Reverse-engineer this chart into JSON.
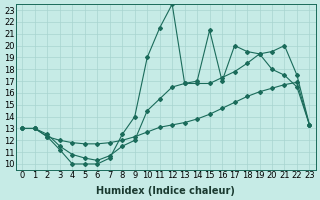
{
  "xlabel": "Humidex (Indice chaleur)",
  "ylabel": "",
  "xlim": [
    -0.5,
    23.5
  ],
  "ylim": [
    9.5,
    23.5
  ],
  "xticks": [
    0,
    1,
    2,
    3,
    4,
    5,
    6,
    7,
    8,
    9,
    10,
    11,
    12,
    13,
    14,
    15,
    16,
    17,
    18,
    19,
    20,
    21,
    22,
    23
  ],
  "yticks": [
    10,
    11,
    12,
    13,
    14,
    15,
    16,
    17,
    18,
    19,
    20,
    21,
    22,
    23
  ],
  "bg_color": "#c6ebe6",
  "grid_color": "#a8d5d0",
  "line_color": "#1a6b5a",
  "line1_x": [
    0,
    1,
    2,
    3,
    4,
    5,
    6,
    7,
    8,
    9,
    10,
    11,
    12,
    13,
    14,
    15,
    16,
    17,
    18,
    19,
    20,
    21,
    22,
    23
  ],
  "line1_y": [
    13.0,
    13.0,
    12.3,
    11.2,
    10.0,
    10.0,
    10.0,
    10.5,
    12.5,
    14.0,
    19.0,
    21.5,
    23.5,
    16.8,
    17.0,
    21.3,
    17.0,
    20.0,
    19.5,
    19.3,
    18.0,
    17.5,
    16.5,
    13.3
  ],
  "line2_x": [
    0,
    1,
    2,
    3,
    4,
    5,
    6,
    7,
    8,
    9,
    10,
    11,
    12,
    13,
    14,
    15,
    16,
    17,
    18,
    19,
    20,
    21,
    22,
    23
  ],
  "line2_y": [
    13.0,
    13.0,
    12.5,
    11.5,
    10.8,
    10.5,
    10.3,
    10.7,
    11.5,
    12.0,
    14.5,
    15.5,
    16.5,
    16.8,
    16.8,
    16.8,
    17.3,
    17.8,
    18.5,
    19.3,
    19.5,
    20.0,
    17.5,
    13.3
  ],
  "line3_x": [
    0,
    1,
    2,
    3,
    4,
    5,
    6,
    7,
    8,
    9,
    10,
    11,
    12,
    13,
    14,
    15,
    16,
    17,
    18,
    19,
    20,
    21,
    22,
    23
  ],
  "line3_y": [
    13.0,
    13.0,
    12.3,
    12.0,
    11.8,
    11.7,
    11.7,
    11.8,
    12.0,
    12.3,
    12.7,
    13.1,
    13.3,
    13.5,
    13.8,
    14.2,
    14.7,
    15.2,
    15.7,
    16.1,
    16.4,
    16.7,
    16.9,
    13.3
  ],
  "font_size": 6,
  "marker": "D",
  "marker_size": 2.0,
  "line_width": 0.8
}
